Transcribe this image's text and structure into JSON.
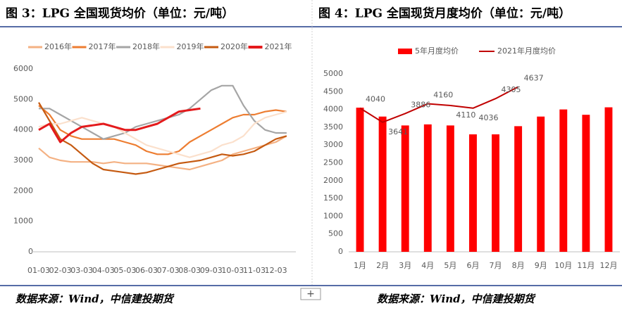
{
  "chart_data": [
    {
      "type": "line",
      "title": "图 3：LPG 全国现货均价（单位：元/吨）",
      "source": "数据来源：Wind，中信建投期货",
      "categories": [
        "01-03",
        null,
        "02-03",
        null,
        "03-03",
        null,
        "04-03",
        null,
        "05-03",
        null,
        "06-03",
        null,
        "07-03",
        null,
        "08-03",
        null,
        "09-03",
        null,
        "10-03",
        null,
        "11-03",
        null,
        "12-03",
        null
      ],
      "ylim": [
        0,
        6000
      ],
      "yticks": [
        0,
        1000,
        2000,
        3000,
        4000,
        5000,
        6000
      ],
      "grid": false,
      "legend": "top",
      "series": [
        {
          "name": "2016年",
          "color": "#f4b183",
          "values": [
            3400,
            3100,
            3000,
            2950,
            2950,
            2950,
            2900,
            2950,
            2900,
            2900,
            2900,
            2850,
            2800,
            2750,
            2700,
            2800,
            2900,
            3000,
            3200,
            3300,
            3400,
            3500,
            3600,
            3800
          ]
        },
        {
          "name": "2017年",
          "color": "#ed7d31",
          "values": [
            4800,
            4500,
            4000,
            3800,
            3700,
            3700,
            3700,
            3700,
            3600,
            3500,
            3300,
            3200,
            3200,
            3300,
            3600,
            3800,
            4000,
            4200,
            4400,
            4500,
            4500,
            4600,
            4650,
            4600
          ]
        },
        {
          "name": "2018年",
          "color": "#a5a5a5",
          "values": [
            4700,
            4700,
            4500,
            4300,
            4100,
            3900,
            3700,
            3800,
            3900,
            4100,
            4200,
            4300,
            4400,
            4500,
            4700,
            5000,
            5300,
            5450,
            5450,
            4800,
            4300,
            4000,
            3900,
            3900
          ]
        },
        {
          "name": "2019年",
          "color": "#fbe0cc",
          "values": [
            4100,
            4200,
            4200,
            4300,
            4400,
            4300,
            4200,
            4100,
            3900,
            3700,
            3500,
            3400,
            3300,
            3200,
            3100,
            3200,
            3300,
            3500,
            3600,
            3800,
            4200,
            4400,
            4500,
            4600
          ]
        },
        {
          "name": "2020年",
          "color": "#c55a11",
          "values": [
            4900,
            4300,
            3700,
            3500,
            3200,
            2900,
            2700,
            2650,
            2600,
            2550,
            2600,
            2700,
            2800,
            2900,
            2950,
            3000,
            3100,
            3200,
            3150,
            3200,
            3300,
            3500,
            3700,
            3800
          ]
        },
        {
          "name": "2021年",
          "color": "#e41a1c",
          "values": [
            4000,
            4200,
            3600,
            3900,
            4100,
            4150,
            4200,
            4100,
            4000,
            4000,
            4100,
            4200,
            4400,
            4600,
            4650,
            4700,
            null,
            null,
            null,
            null,
            null,
            null,
            null,
            null
          ]
        }
      ]
    },
    {
      "type": "combo",
      "title": "图 4：LPG 全国现货月度均价（单位：元/吨）",
      "source": "数据来源：Wind，中信建投期货",
      "categories": [
        "1月",
        "2月",
        "3月",
        "4月",
        "5月",
        "6月",
        "7月",
        "8月",
        "9月",
        "10月",
        "11月",
        "12月"
      ],
      "ylim": [
        0,
        5000
      ],
      "yticks": [
        0,
        500,
        1000,
        1500,
        2000,
        2500,
        3000,
        3500,
        4000,
        4500,
        5000
      ],
      "grid": false,
      "legend": "top",
      "series": [
        {
          "name": "5年月度均价",
          "type": "bar",
          "color": "#ff0000",
          "values": [
            4050,
            3800,
            3550,
            3580,
            3550,
            3300,
            3300,
            3530,
            3800,
            4000,
            3850,
            4060
          ]
        },
        {
          "name": "2021年月度均价",
          "type": "line",
          "color": "#c00000",
          "values": [
            4040,
            3641,
            3886,
            4160,
            4110,
            4036,
            4305,
            4637,
            null,
            null,
            null,
            null
          ],
          "data_labels": true
        }
      ]
    }
  ]
}
